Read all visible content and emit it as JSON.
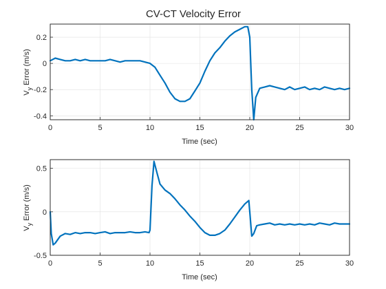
{
  "title": "CV-CT Velocity Error",
  "line_color": "#0072bd",
  "chart_data": [
    {
      "type": "line",
      "title": "CV-CT Velocity Error",
      "xlabel": "Time (sec)",
      "ylabel_main": "V",
      "ylabel_sub": "y",
      "ylabel_rest": " Error (m/s)",
      "xlim": [
        0,
        30
      ],
      "ylim": [
        -0.43,
        0.3
      ],
      "xticks": [
        0,
        5,
        10,
        15,
        20,
        25,
        30
      ],
      "xtick_labels": [
        "0",
        "5",
        "10",
        "15",
        "20",
        "25",
        "30"
      ],
      "yticks": [
        -0.4,
        -0.2,
        0,
        0.2
      ],
      "ytick_labels": [
        "-0.4",
        "-0.2",
        "0",
        "0.2"
      ],
      "grid": true,
      "series": [
        {
          "x": [
            0,
            0.5,
            1,
            1.5,
            2,
            2.5,
            3,
            3.5,
            4,
            4.5,
            5,
            5.5,
            6,
            6.5,
            7,
            7.5,
            8,
            8.5,
            9,
            9.5,
            10,
            10.5,
            11,
            11.5,
            12,
            12.5,
            13,
            13.5,
            14,
            14.5,
            15,
            15.5,
            16,
            16.5,
            17,
            17.5,
            18,
            18.5,
            19,
            19.5,
            19.8,
            20.0,
            20.2,
            20.4,
            20.6,
            21,
            21.5,
            22,
            22.5,
            23,
            23.5,
            24,
            24.5,
            25,
            25.5,
            26,
            26.5,
            27,
            27.5,
            28,
            28.5,
            29,
            29.5,
            30
          ],
          "y": [
            0.02,
            0.04,
            0.03,
            0.02,
            0.02,
            0.03,
            0.02,
            0.03,
            0.02,
            0.02,
            0.02,
            0.02,
            0.03,
            0.02,
            0.01,
            0.02,
            0.02,
            0.02,
            0.02,
            0.01,
            0.0,
            -0.03,
            -0.09,
            -0.15,
            -0.22,
            -0.27,
            -0.29,
            -0.29,
            -0.27,
            -0.21,
            -0.15,
            -0.06,
            0.02,
            0.08,
            0.12,
            0.17,
            0.21,
            0.24,
            0.26,
            0.28,
            0.28,
            0.2,
            -0.2,
            -0.44,
            -0.26,
            -0.19,
            -0.18,
            -0.17,
            -0.18,
            -0.19,
            -0.2,
            -0.18,
            -0.2,
            -0.19,
            -0.18,
            -0.2,
            -0.19,
            -0.2,
            -0.18,
            -0.19,
            -0.2,
            -0.19,
            -0.2,
            -0.19
          ]
        }
      ]
    },
    {
      "type": "line",
      "xlabel": "Time (sec)",
      "ylabel_main": "V",
      "ylabel_sub": "y",
      "ylabel_rest": " Error (m/s)",
      "xlim": [
        0,
        30
      ],
      "ylim": [
        -0.5,
        0.6
      ],
      "xticks": [
        0,
        5,
        10,
        15,
        20,
        25,
        30
      ],
      "xtick_labels": [
        "0",
        "5",
        "10",
        "15",
        "20",
        "25",
        "30"
      ],
      "yticks": [
        -0.5,
        0,
        0.5
      ],
      "ytick_labels": [
        "-0.5",
        "0",
        "0.5"
      ],
      "grid": true,
      "series": [
        {
          "x": [
            0,
            0.1,
            0.3,
            0.5,
            1,
            1.5,
            2,
            2.5,
            3,
            3.5,
            4,
            4.5,
            5,
            5.5,
            6,
            6.5,
            7,
            7.5,
            8,
            8.5,
            9,
            9.5,
            9.9,
            10.0,
            10.2,
            10.4,
            10.7,
            11,
            11.5,
            12,
            12.5,
            13,
            13.5,
            14,
            14.5,
            15,
            15.5,
            16,
            16.5,
            17,
            17.5,
            18,
            18.5,
            19,
            19.5,
            19.9,
            20.0,
            20.2,
            20.4,
            20.7,
            21,
            21.5,
            22,
            22.5,
            23,
            23.5,
            24,
            24.5,
            25,
            25.5,
            26,
            26.5,
            27,
            27.5,
            28,
            28.5,
            29,
            29.5,
            30
          ],
          "y": [
            0.0,
            -0.25,
            -0.38,
            -0.36,
            -0.28,
            -0.25,
            -0.26,
            -0.24,
            -0.25,
            -0.24,
            -0.24,
            -0.25,
            -0.24,
            -0.23,
            -0.25,
            -0.24,
            -0.24,
            -0.24,
            -0.23,
            -0.24,
            -0.24,
            -0.23,
            -0.24,
            -0.21,
            0.3,
            0.58,
            0.45,
            0.32,
            0.25,
            0.21,
            0.15,
            0.08,
            0.02,
            -0.05,
            -0.11,
            -0.18,
            -0.24,
            -0.27,
            -0.27,
            -0.25,
            -0.21,
            -0.14,
            -0.06,
            0.02,
            0.09,
            0.13,
            0.0,
            -0.28,
            -0.25,
            -0.16,
            -0.15,
            -0.14,
            -0.13,
            -0.15,
            -0.14,
            -0.15,
            -0.14,
            -0.15,
            -0.14,
            -0.15,
            -0.14,
            -0.15,
            -0.13,
            -0.14,
            -0.15,
            -0.13,
            -0.14,
            -0.14,
            -0.14
          ]
        }
      ]
    }
  ]
}
